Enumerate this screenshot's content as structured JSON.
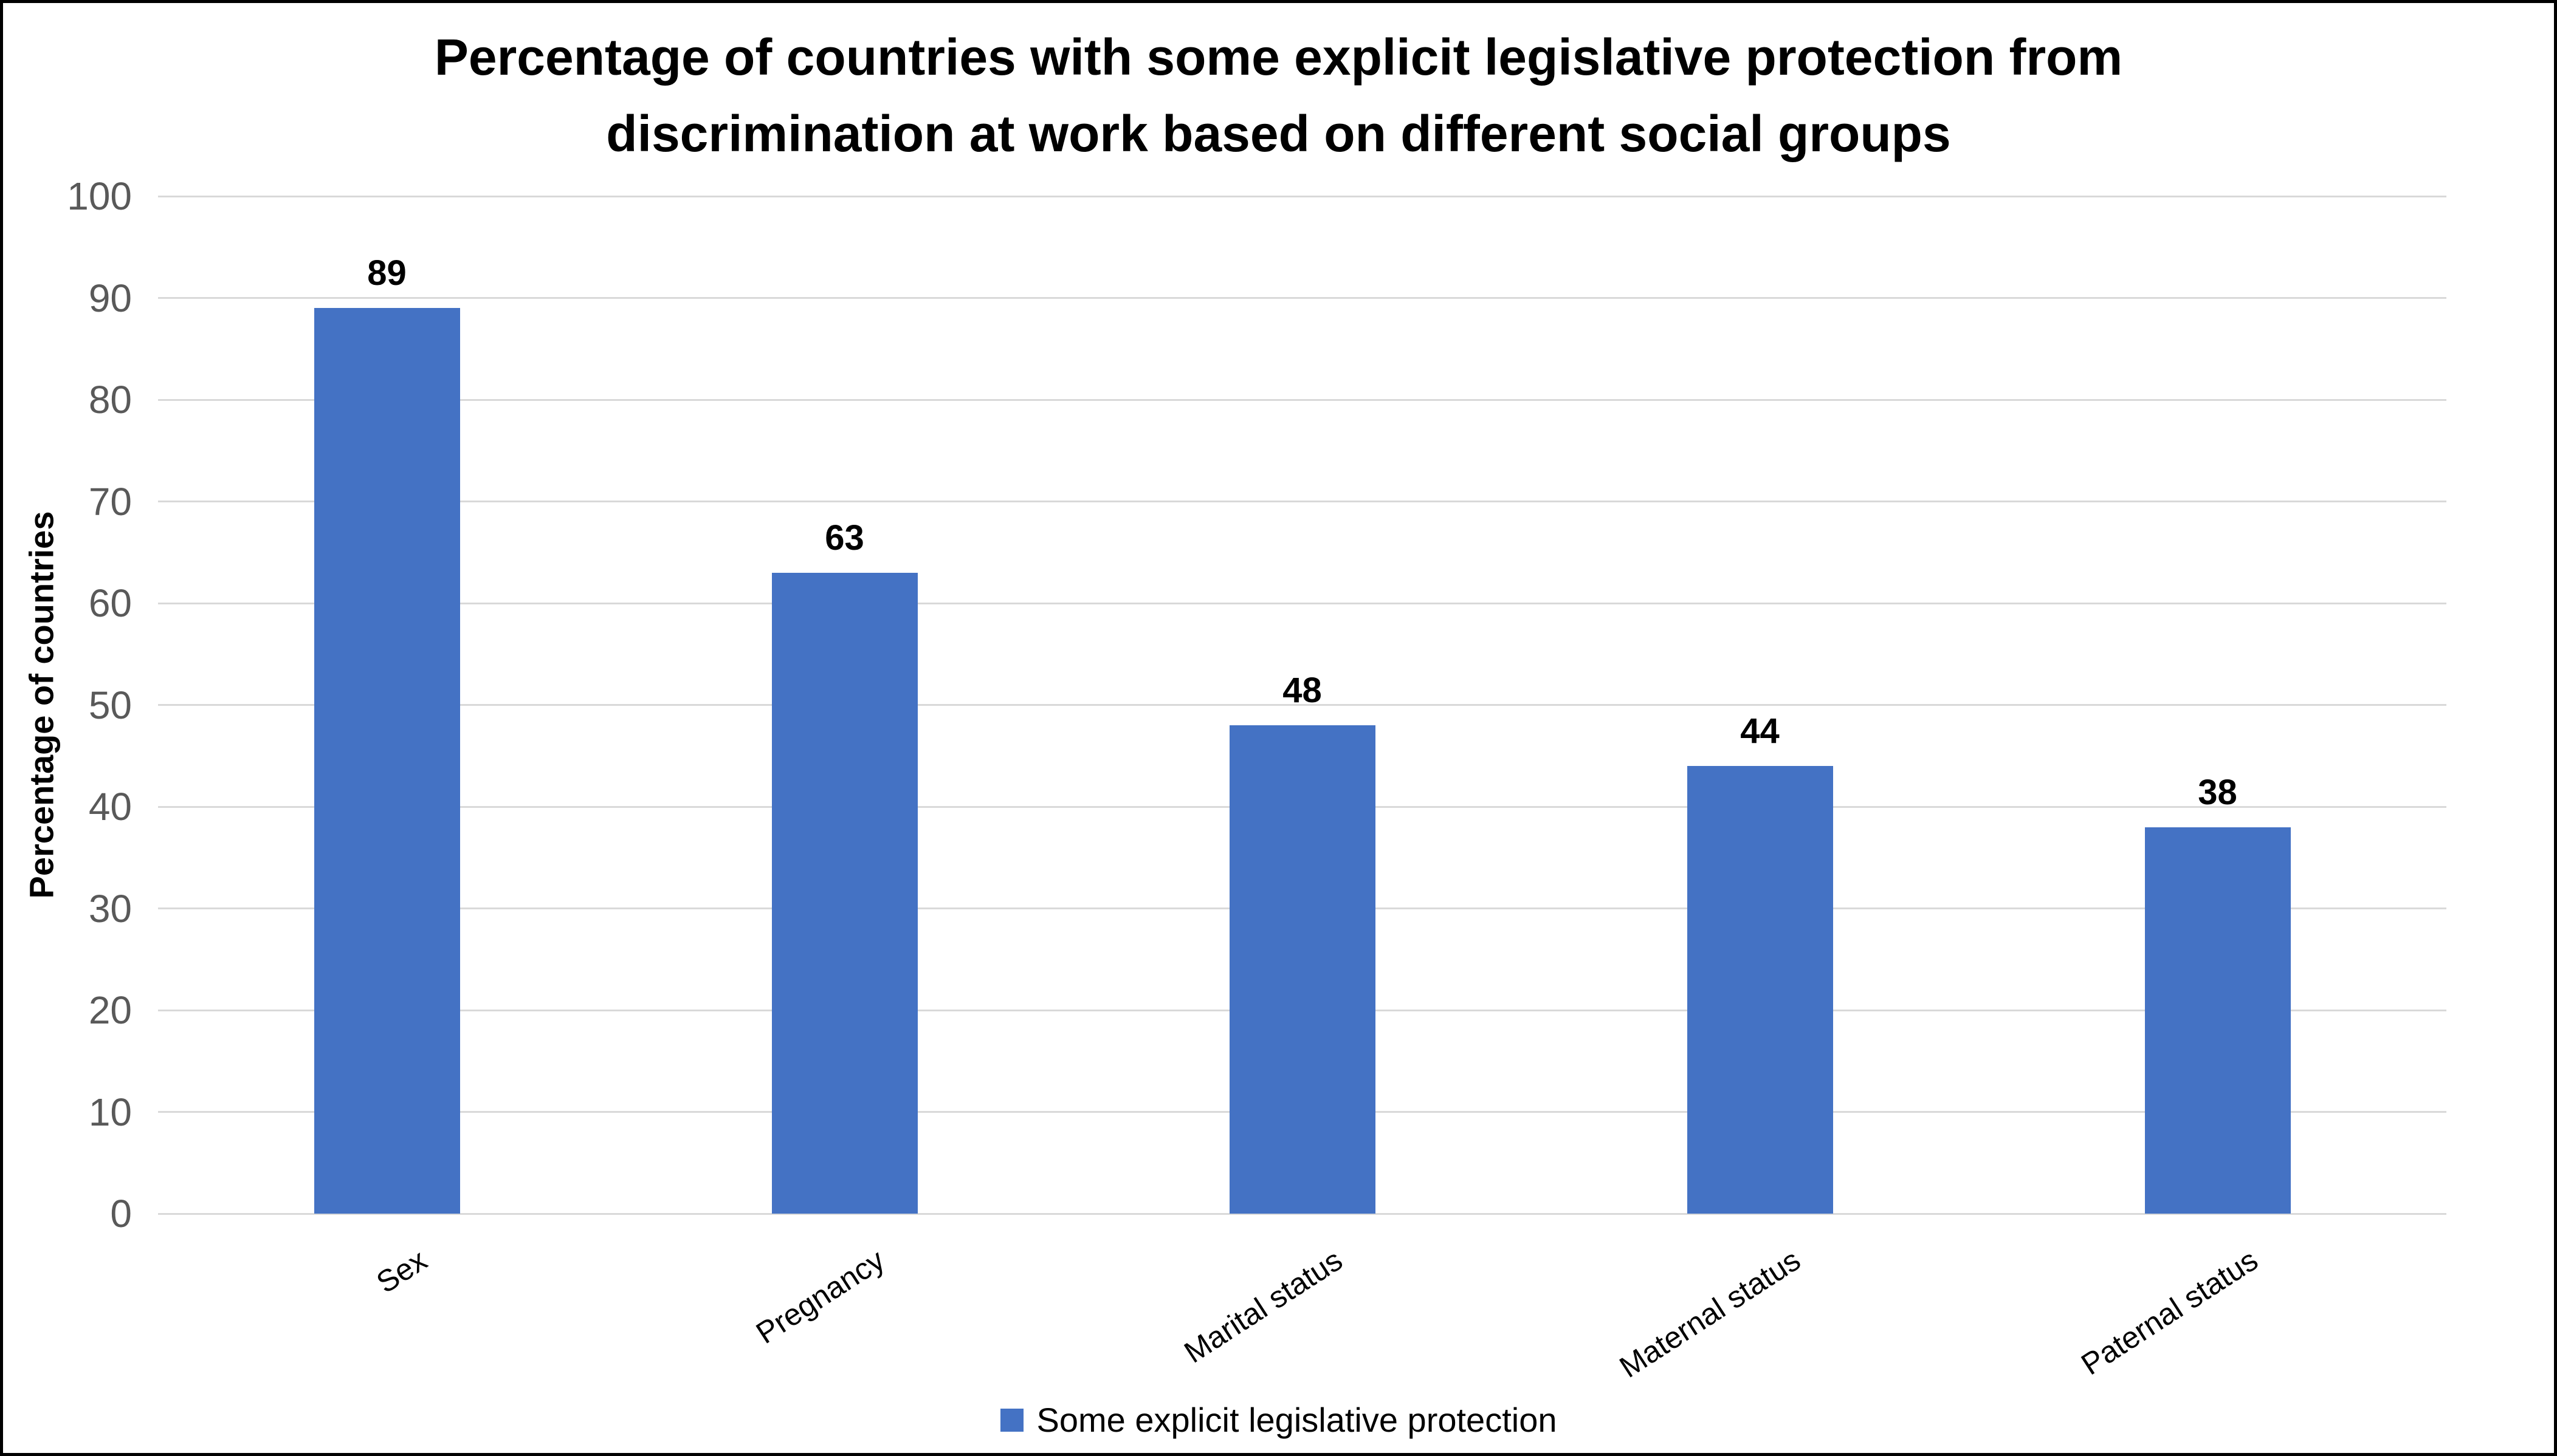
{
  "page": {
    "background": "#ffffff",
    "frame_border_color": "#000000"
  },
  "chart_data": {
    "type": "bar",
    "title": "Percentage of countries with some explicit legislative protection from discrimination at work based on different social groups",
    "categories": [
      "Sex",
      "Pregnancy",
      "Marital status",
      "Maternal status",
      "Paternal status"
    ],
    "values": [
      89,
      63,
      48,
      44,
      38
    ],
    "series": [
      {
        "name": "Some explicit legislative protection",
        "values": [
          89,
          63,
          48,
          44,
          38
        ]
      }
    ],
    "xlabel": "",
    "ylabel": "Percentage of countries",
    "ylim": [
      0,
      100
    ],
    "ytick_step": 10,
    "ytick_labels": [
      "0",
      "10",
      "20",
      "30",
      "40",
      "50",
      "60",
      "70",
      "80",
      "90",
      "100"
    ],
    "grid": "horizontal",
    "data_labels_shown": true,
    "x_label_rotation_deg": -33,
    "legend_position": "bottom",
    "bar_color": "#4472C4",
    "gridline_color": "#D9D9D9",
    "tick_label_color": "#595959",
    "title_color": "#000000",
    "value_label_color": "#000000"
  },
  "legend": {
    "label": "Some explicit legislative protection",
    "swatch_color": "#4472C4"
  }
}
